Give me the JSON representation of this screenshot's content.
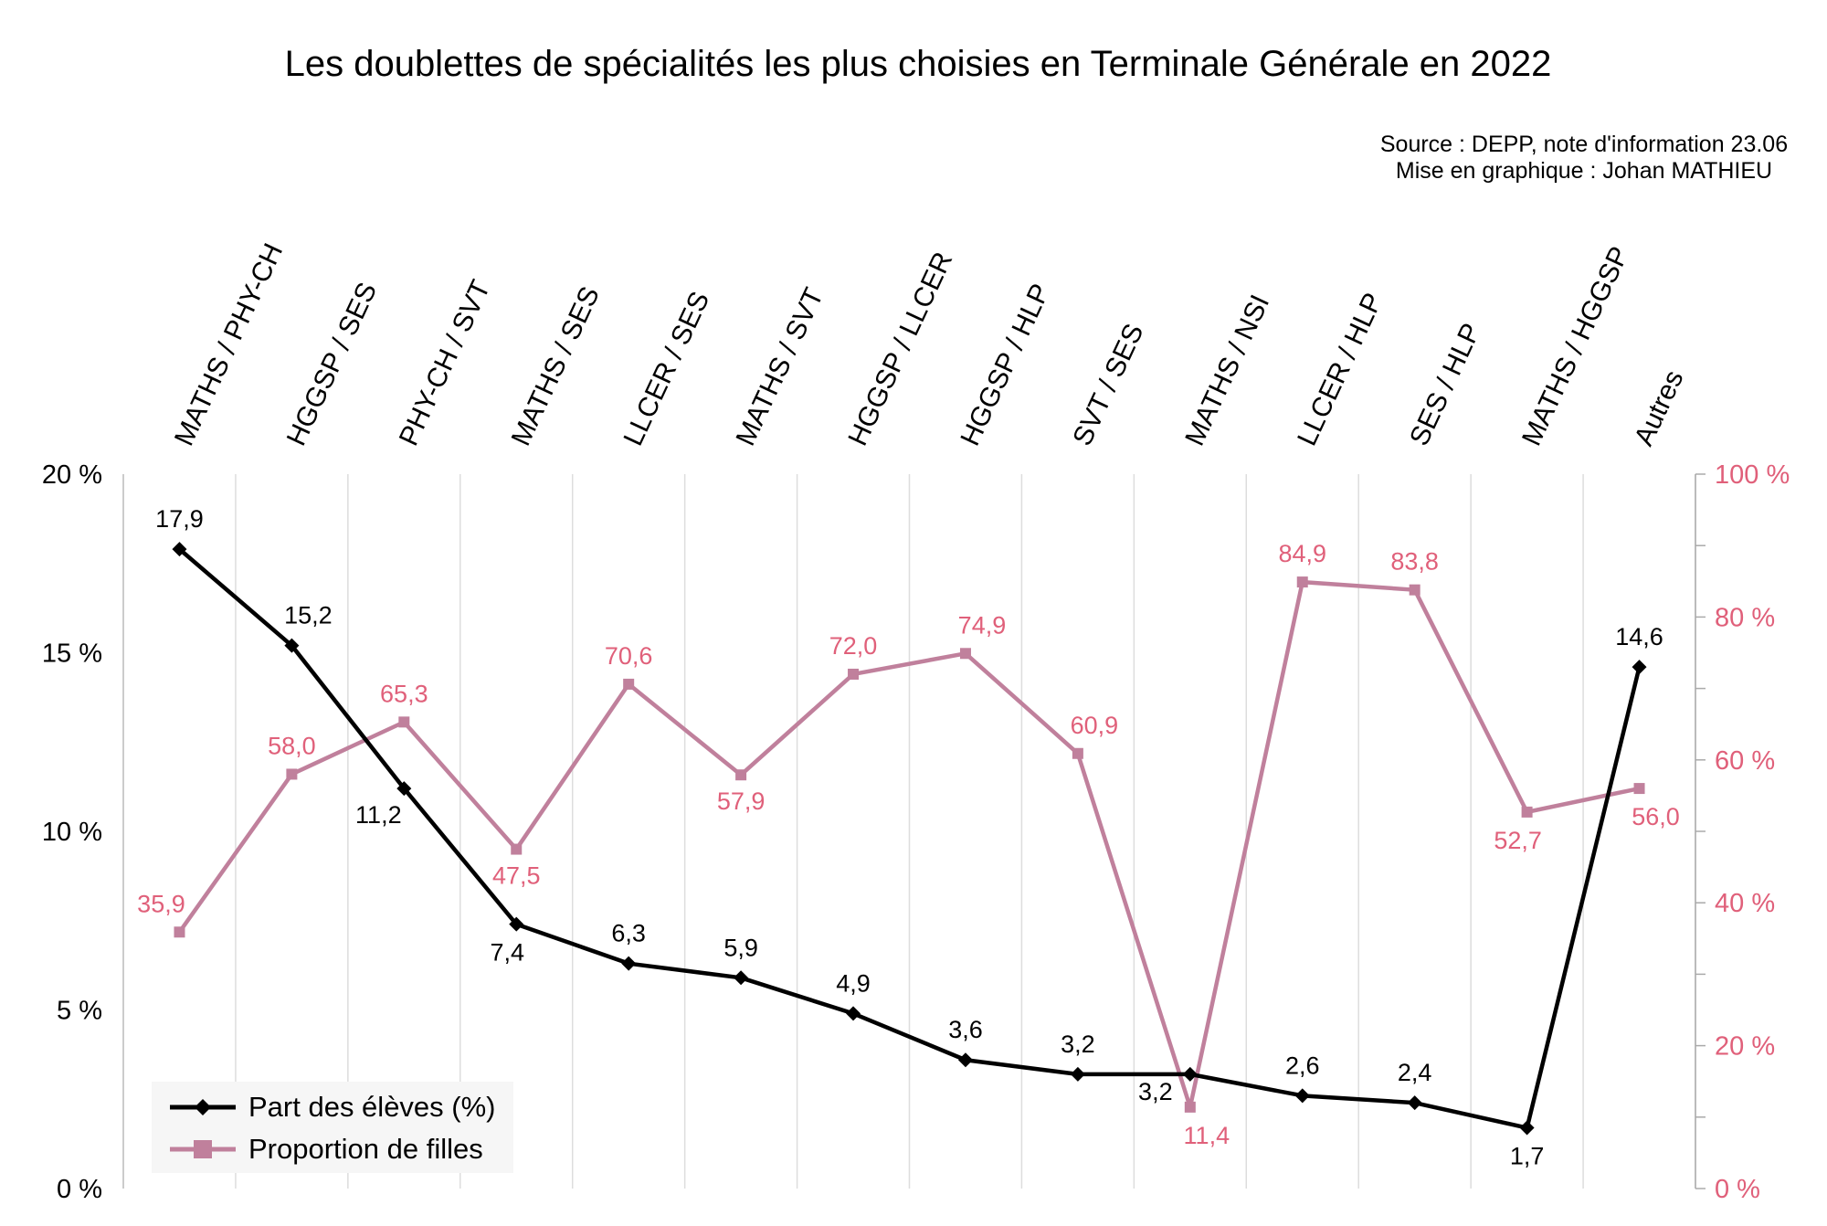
{
  "chart_data": {
    "type": "line",
    "title": "Les doublettes de spécialités les plus choisies en Terminale Générale en 2022",
    "source": "Source : DEPP, note d'information 23.06",
    "credit": "Mise en graphique : Johan MATHIEU",
    "categories": [
      "MATHS / PHY-CH",
      "HGGSP / SES",
      "PHY-CH / SVT",
      "MATHS / SES",
      "LLCER / SES",
      "MATHS / SVT",
      "HGGSP / LLCER",
      "HGGSP / HLP",
      "SVT / SES",
      "MATHS / NSI",
      "LLCER / HLP",
      "SES / HLP",
      "MATHS / HGGSP",
      "Autres"
    ],
    "series": [
      {
        "name": "Part des élèves (%)",
        "axis": "left",
        "color": "#000000",
        "marker": "diamond",
        "values": [
          17.9,
          15.2,
          11.2,
          7.4,
          6.3,
          5.9,
          4.9,
          3.6,
          3.2,
          3.2,
          2.6,
          2.4,
          1.7,
          14.6
        ],
        "labels": [
          "17,9",
          "15,2",
          "11,2",
          "7,4",
          "6,3",
          "5,9",
          "4,9",
          "3,6",
          "3,2",
          "3,2",
          "2,6",
          "2,4",
          "1,7",
          "14,6"
        ]
      },
      {
        "name": "Proportion de filles",
        "axis": "right",
        "color": "#c0809c",
        "label_color": "#e0607a",
        "marker": "square",
        "values": [
          35.9,
          58.0,
          65.3,
          47.5,
          70.6,
          57.9,
          72.0,
          74.9,
          60.9,
          11.4,
          84.9,
          83.8,
          52.7,
          56.0
        ],
        "labels": [
          "35,9",
          "58,0",
          "65,3",
          "47,5",
          "70,6",
          "57,9",
          "72,0",
          "74,9",
          "60,9",
          "11,4",
          "84,9",
          "83,8",
          "52,7",
          "56,0"
        ]
      }
    ],
    "y_left": {
      "range": [
        0,
        20
      ],
      "ticks": [
        0,
        5,
        10,
        15,
        20
      ],
      "tick_labels": [
        "0 %",
        "5 %",
        "10 %",
        "15 %",
        "20 %"
      ]
    },
    "y_right": {
      "range": [
        0,
        100
      ],
      "ticks": [
        0,
        20,
        40,
        60,
        80,
        100
      ],
      "tick_labels": [
        "0 %",
        "20 %",
        "40 %",
        "60 %",
        "80 %",
        "100 %"
      ],
      "color": "#e0607a"
    },
    "legend_position": "bottom-left",
    "grid": "vertical"
  }
}
